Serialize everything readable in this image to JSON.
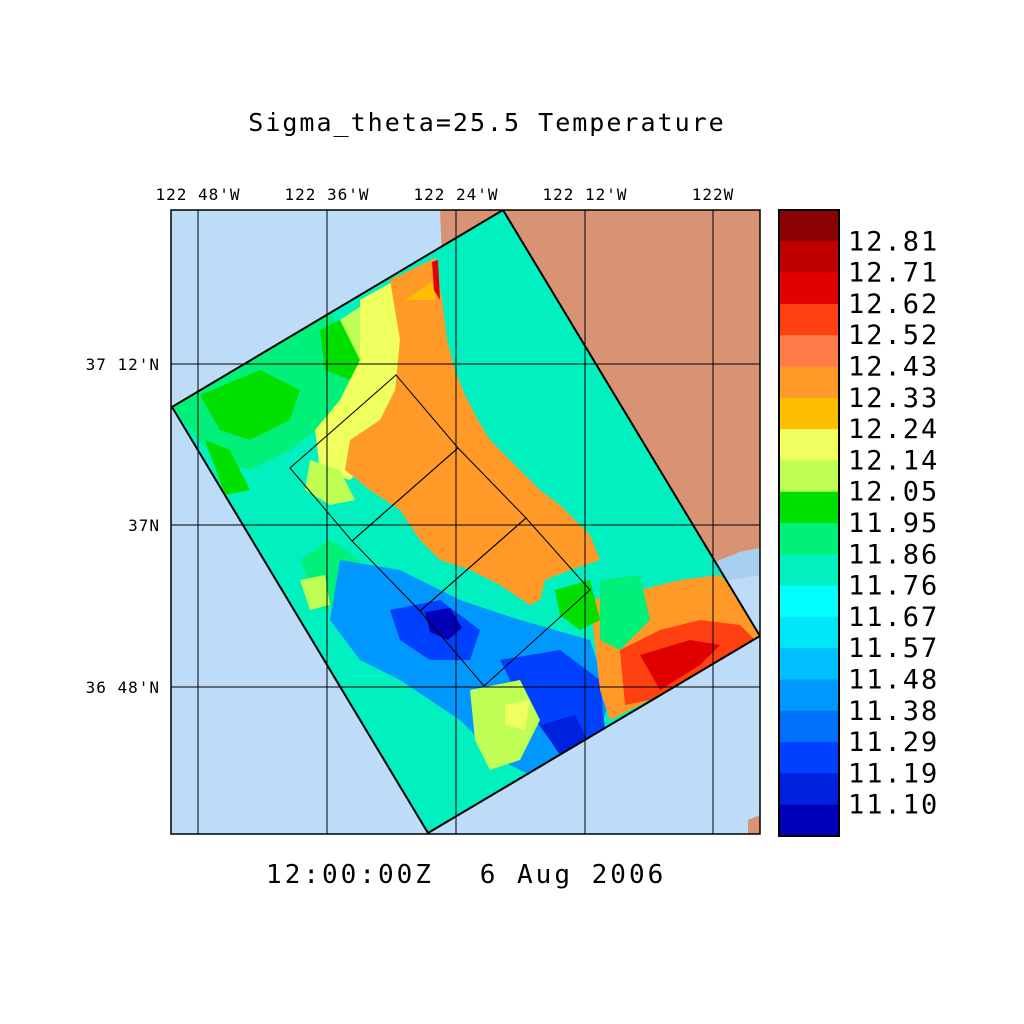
{
  "title": "Sigma_theta=25.5 Temperature",
  "timestamp": {
    "time": "12:00:00Z",
    "date": "6 Aug 2006"
  },
  "axes": {
    "x_ticks": [
      "122 48'W",
      "122 36'W",
      "122 24'W",
      "122 12'W",
      "122W"
    ],
    "y_ticks": [
      "37 12'N",
      "37N",
      "36 48'N"
    ]
  },
  "colorbar": {
    "labels": [
      "12.81",
      "12.71",
      "12.62",
      "12.52",
      "12.43",
      "12.33",
      "12.24",
      "12.14",
      "12.05",
      "11.95",
      "11.86",
      "11.76",
      "11.67",
      "11.57",
      "11.48",
      "11.38",
      "11.29",
      "11.19",
      "11.10"
    ],
    "colors": [
      "#8b0000",
      "#c00000",
      "#e00000",
      "#ff4010",
      "#ff7b48",
      "#ff9a28",
      "#ffbf00",
      "#eeff5e",
      "#bfff55",
      "#00e000",
      "#00f07a",
      "#00f0c0",
      "#00ffff",
      "#00e8f8",
      "#00c0ff",
      "#0098ff",
      "#0070f8",
      "#0040ff",
      "#0020e0",
      "#0000b8"
    ]
  },
  "colors": {
    "ocean": "#bcdcf8",
    "land": "#d79373",
    "coast_shelf": "#a8cff0"
  }
}
